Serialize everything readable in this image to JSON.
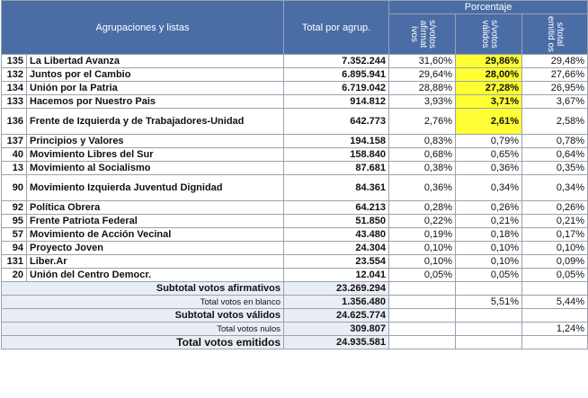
{
  "header": {
    "col_lists": "Agrupaciones y listas",
    "col_total": "Total por agrup.",
    "col_group": "Porcentaje",
    "sub_cols": [
      "s/votos afirmat ivos",
      "s/votos válidos",
      "s/total emitid os"
    ]
  },
  "rows": [
    {
      "code": "135",
      "name": "La Libertad Avanza",
      "total": "7.352.244",
      "p1": "31,60%",
      "p2": "29,86%",
      "p3": "29,48%",
      "hl": true
    },
    {
      "code": "132",
      "name": "Juntos por el Cambio",
      "total": "6.895.941",
      "p1": "29,64%",
      "p2": "28,00%",
      "p3": "27,66%",
      "hl": true
    },
    {
      "code": "134",
      "name": "Unión por la Patria",
      "total": "6.719.042",
      "p1": "28,88%",
      "p2": "27,28%",
      "p3": "26,95%",
      "hl": true
    },
    {
      "code": "133",
      "name": "Hacemos por Nuestro Pais",
      "total": "914.812",
      "p1": "3,93%",
      "p2": "3,71%",
      "p3": "3,67%",
      "hl": true
    },
    {
      "code": "136",
      "name": "Frente de Izquierda y de Trabajadores-Unidad",
      "total": "642.773",
      "p1": "2,76%",
      "p2": "2,61%",
      "p3": "2,58%",
      "hl": true,
      "tall": true
    },
    {
      "code": "137",
      "name": "Principios y Valores",
      "total": "194.158",
      "p1": "0,83%",
      "p2": "0,79%",
      "p3": "0,78%"
    },
    {
      "code": "40",
      "name": "Movimiento Libres del Sur",
      "total": "158.840",
      "p1": "0,68%",
      "p2": "0,65%",
      "p3": "0,64%"
    },
    {
      "code": "13",
      "name": "Movimiento al Socialismo",
      "total": "87.681",
      "p1": "0,38%",
      "p2": "0,36%",
      "p3": "0,35%"
    },
    {
      "code": "90",
      "name": "Movimiento Izquierda Juventud Dignidad",
      "total": "84.361",
      "p1": "0,36%",
      "p2": "0,34%",
      "p3": "0,34%",
      "tall": true
    },
    {
      "code": "92",
      "name": "Política Obrera",
      "total": "64.213",
      "p1": "0,28%",
      "p2": "0,26%",
      "p3": "0,26%"
    },
    {
      "code": "95",
      "name": "Frente Patriota Federal",
      "total": "51.850",
      "p1": "0,22%",
      "p2": "0,21%",
      "p3": "0,21%"
    },
    {
      "code": "57",
      "name": "Movimiento de Acción Vecinal",
      "total": "43.480",
      "p1": "0,19%",
      "p2": "0,18%",
      "p3": "0,17%"
    },
    {
      "code": "94",
      "name": "Proyecto Joven",
      "total": "24.304",
      "p1": "0,10%",
      "p2": "0,10%",
      "p3": "0,10%"
    },
    {
      "code": "131",
      "name": "Liber.Ar",
      "total": "23.554",
      "p1": "0,10%",
      "p2": "0,10%",
      "p3": "0,09%"
    },
    {
      "code": "20",
      "name": "Unión del Centro Democr.",
      "total": "12.041",
      "p1": "0,05%",
      "p2": "0,05%",
      "p3": "0,05%"
    }
  ],
  "summary": [
    {
      "label": "Subtotal votos afirmativos",
      "total": "23.269.294",
      "p1": "",
      "p2": "",
      "p3": "",
      "size": "normal",
      "pcols": false
    },
    {
      "label": "Total votos en blanco",
      "total": "1.356.480",
      "p1": "",
      "p2": "5,51%",
      "p3": "5,44%",
      "size": "small",
      "pcols": true
    },
    {
      "label": "Subtotal votos válidos",
      "total": "24.625.774",
      "p1": "",
      "p2": "",
      "p3": "",
      "size": "normal",
      "pcols": false
    },
    {
      "label": "Total votos nulos",
      "total": "309.807",
      "p1": "",
      "p2": "",
      "p3": "1,24%",
      "size": "small",
      "pcols": true
    },
    {
      "label": "Total votos emitidos",
      "total": "24.935.581",
      "p1": "",
      "p2": "",
      "p3": "",
      "size": "big",
      "pcols": false
    }
  ],
  "colors": {
    "header_bg": "#4a6da6",
    "highlight": "#ffff33",
    "summary_bg": "#e9eef5"
  }
}
